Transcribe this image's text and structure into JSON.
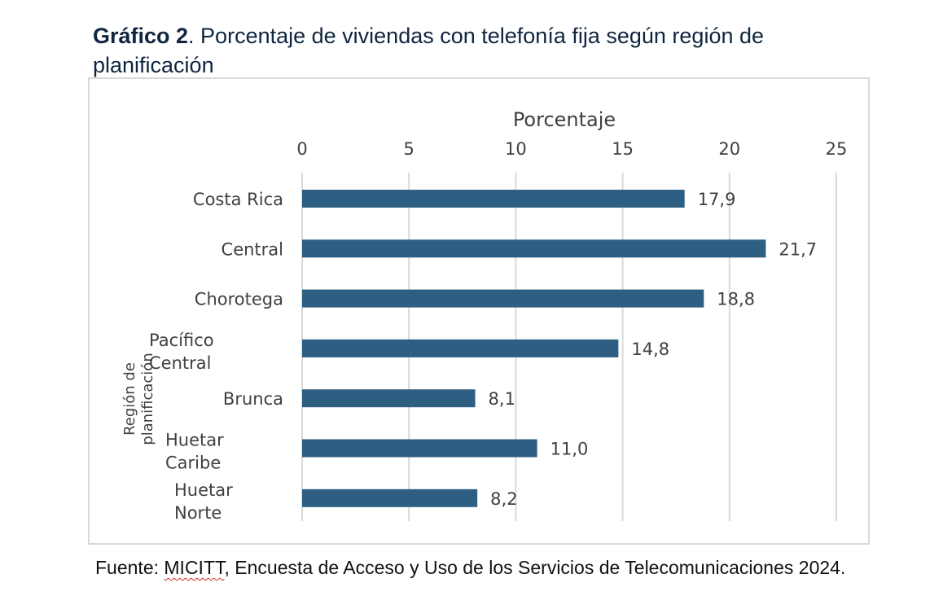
{
  "title": {
    "bold": "Gráfico 2",
    "rest": ". Porcentaje de viviendas con telefonía fija según región de planificación"
  },
  "source": {
    "prefix": "Fuente: ",
    "org": "MICITT",
    "rest": ", Encuesta de Acceso y Uso de los Servicios de Telecomunicaciones 2024."
  },
  "colors": {
    "bar": "#2e5f82",
    "grid": "#d9d9d9"
  },
  "chart_data": {
    "type": "bar",
    "orientation": "horizontal",
    "title": "",
    "xlabel": "Porcentaje",
    "ylabel": "Región de planificación",
    "xlim": [
      0,
      25
    ],
    "xticks": [
      "0",
      "5",
      "10",
      "15",
      "20",
      "25"
    ],
    "categories": [
      "Costa Rica",
      "Central",
      "Chorotega",
      "Pacífico Central",
      "Brunca",
      "Huetar Caribe",
      "Huetar Norte"
    ],
    "category_lines": [
      [
        "Costa Rica"
      ],
      [
        "Central"
      ],
      [
        "Chorotega"
      ],
      [
        "Pacífico",
        "Central"
      ],
      [
        "Brunca"
      ],
      [
        "Huetar",
        "Caribe"
      ],
      [
        "Huetar",
        "Norte"
      ]
    ],
    "values": [
      17.9,
      21.7,
      18.8,
      14.8,
      8.1,
      11.0,
      8.2
    ],
    "value_labels": [
      "17,9",
      "21,7",
      "18,8",
      "14,8",
      "8,1",
      "11,0",
      "8,2"
    ],
    "grid": true,
    "axis_position": "top"
  }
}
